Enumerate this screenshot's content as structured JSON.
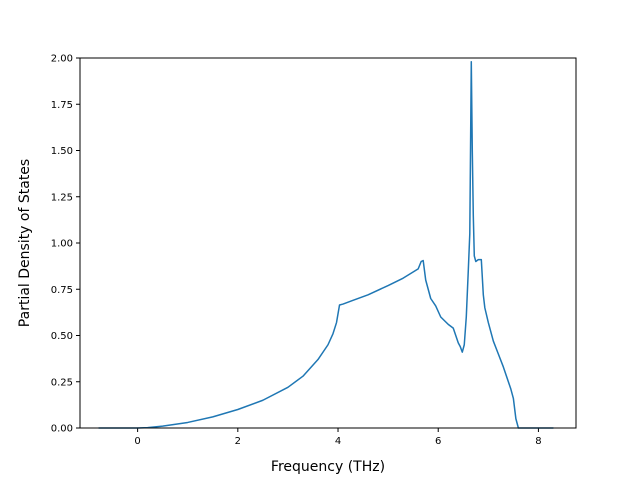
{
  "chart_data": {
    "type": "line",
    "title": "",
    "xlabel": "Frequency (THz)",
    "ylabel": "Partial Density of States",
    "xlim": [
      -1.15,
      8.75
    ],
    "ylim": [
      0.0,
      2.0
    ],
    "grid": false,
    "x_ticks": [
      0,
      2,
      4,
      6,
      8
    ],
    "x_tick_labels": [
      "0",
      "2",
      "4",
      "6",
      "8"
    ],
    "y_ticks": [
      0.0,
      0.25,
      0.5,
      0.75,
      1.0,
      1.25,
      1.5,
      1.75,
      2.0
    ],
    "y_tick_labels": [
      "0.00",
      "0.25",
      "0.50",
      "0.75",
      "1.00",
      "1.25",
      "1.50",
      "1.75",
      "2.00"
    ],
    "series": [
      {
        "color": "#1f77b4",
        "x": [
          -0.78,
          -0.5,
          0.0,
          0.2,
          0.5,
          1.0,
          1.5,
          2.0,
          2.5,
          3.0,
          3.3,
          3.6,
          3.8,
          3.9,
          3.97,
          4.03,
          4.1,
          4.3,
          4.6,
          5.0,
          5.3,
          5.6,
          5.66,
          5.7,
          5.75,
          5.85,
          5.95,
          6.05,
          6.2,
          6.3,
          6.35,
          6.4,
          6.44,
          6.48,
          6.52,
          6.56,
          6.6,
          6.63,
          6.66,
          6.68,
          6.7,
          6.72,
          6.75,
          6.8,
          6.86,
          6.9,
          6.93,
          7.0,
          7.1,
          7.2,
          7.3,
          7.4,
          7.45,
          7.5,
          7.55,
          7.6,
          7.8,
          8.0,
          8.3
        ],
        "y": [
          0.0,
          0.0,
          0.0,
          0.002,
          0.01,
          0.03,
          0.06,
          0.1,
          0.15,
          0.22,
          0.28,
          0.37,
          0.45,
          0.51,
          0.57,
          0.665,
          0.67,
          0.69,
          0.72,
          0.77,
          0.81,
          0.86,
          0.9,
          0.905,
          0.8,
          0.7,
          0.66,
          0.6,
          0.56,
          0.54,
          0.5,
          0.46,
          0.44,
          0.41,
          0.45,
          0.6,
          0.85,
          1.05,
          1.98,
          1.5,
          1.15,
          0.93,
          0.9,
          0.91,
          0.91,
          0.72,
          0.65,
          0.57,
          0.47,
          0.4,
          0.33,
          0.25,
          0.21,
          0.16,
          0.05,
          0.0,
          0.0,
          0.0,
          0.0
        ]
      }
    ]
  }
}
